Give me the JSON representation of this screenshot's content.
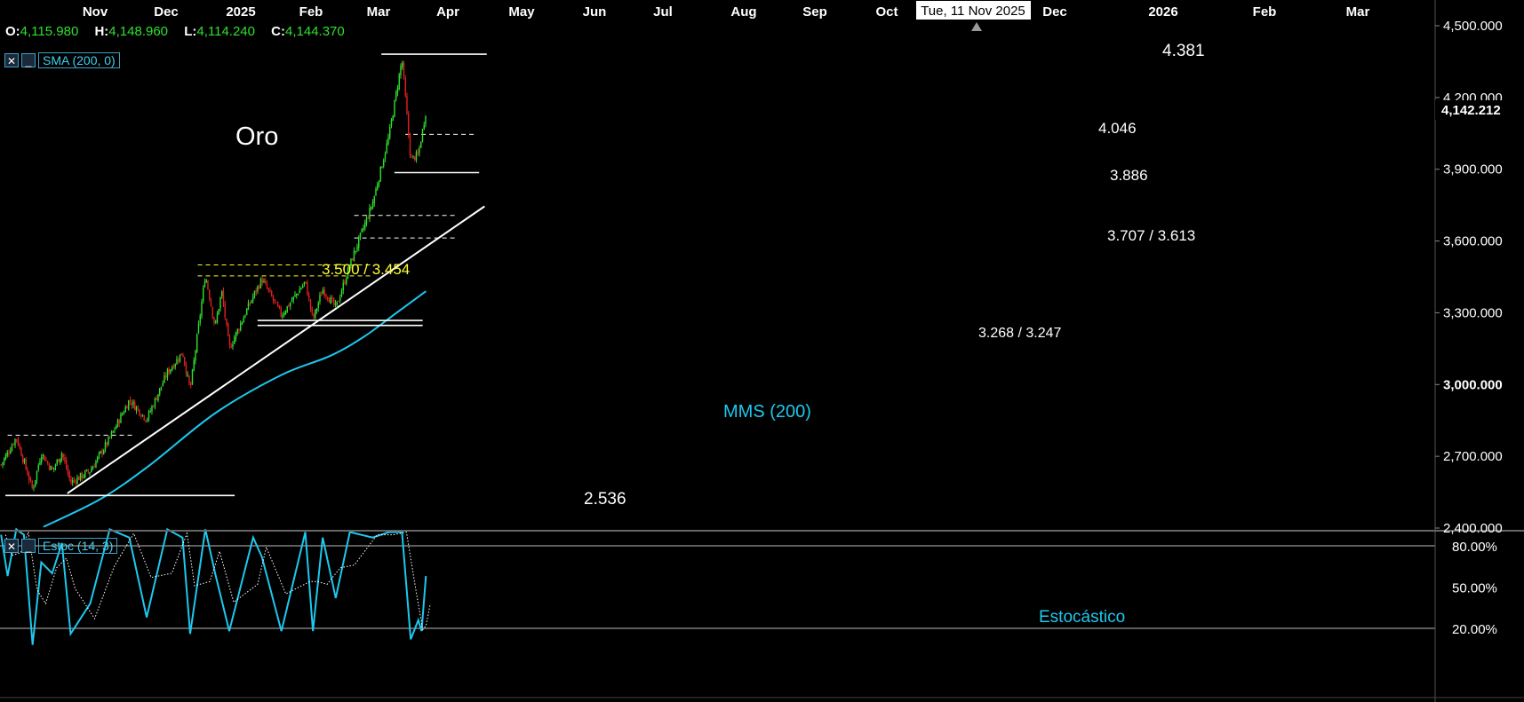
{
  "ohlc": {
    "o_label": "O:",
    "o": "4,115.980",
    "h_label": "H:",
    "h": "4,148.960",
    "l_label": "L:",
    "l": "4,114.240",
    "c_label": "C:",
    "c": "4,144.370"
  },
  "indicators": {
    "sma_label": "SMA (200, 0)",
    "stoch_label": "Estoc (14, 3)",
    "close_symbol": "✕",
    "minimize_symbol": "_"
  },
  "asset_title": "Oro",
  "crosshair_date": "Tue, 11 Nov 2025",
  "last_price": "4,142.212",
  "colors": {
    "up": "#2ee12e",
    "down": "#e02020",
    "sma": "#1ec8ee",
    "text": "#ffffff",
    "level_yellow": "#ffff33",
    "stoch_label": "#1ec8ee"
  },
  "chart_data": [
    {
      "type": "candlestick",
      "x_axis": {
        "tick_labels": [
          "Nov",
          "Dec",
          "2025",
          "Feb",
          "Mar",
          "Apr",
          "May",
          "Jun",
          "Jul",
          "Aug",
          "Sep",
          "Oct",
          "Dec",
          "2026",
          "Feb",
          "Mar"
        ]
      },
      "y_axis": {
        "tick_labels": [
          "4,500.000",
          "4,200.000",
          "3,900.000",
          "3,600.000",
          "3,300.000",
          "3,000.000",
          "2,700.000",
          "2,400.000"
        ],
        "ticks": [
          4500,
          4200,
          3900,
          3600,
          3300,
          3000,
          2700,
          2400
        ],
        "range": [
          2400,
          4500
        ]
      },
      "price_path": [
        {
          "date": "2024-10-16",
          "close": 2665
        },
        {
          "date": "2024-10-30",
          "close": 2780
        },
        {
          "date": "2024-11-14",
          "close": 2560
        },
        {
          "date": "2024-11-22",
          "close": 2715
        },
        {
          "date": "2024-12-02",
          "close": 2640
        },
        {
          "date": "2024-12-11",
          "close": 2715
        },
        {
          "date": "2024-12-19",
          "close": 2590
        },
        {
          "date": "2025-01-06",
          "close": 2640
        },
        {
          "date": "2025-01-24",
          "close": 2775
        },
        {
          "date": "2025-02-11",
          "close": 2935
        },
        {
          "date": "2025-02-27",
          "close": 2855
        },
        {
          "date": "2025-03-18",
          "close": 3050
        },
        {
          "date": "2025-04-01",
          "close": 3135
        },
        {
          "date": "2025-04-08",
          "close": 2975
        },
        {
          "date": "2025-04-22",
          "close": 3460
        },
        {
          "date": "2025-05-01",
          "close": 3240
        },
        {
          "date": "2025-05-07",
          "close": 3390
        },
        {
          "date": "2025-05-14",
          "close": 3150
        },
        {
          "date": "2025-06-05",
          "close": 3370
        },
        {
          "date": "2025-06-13",
          "close": 3440
        },
        {
          "date": "2025-07-01",
          "close": 3290
        },
        {
          "date": "2025-07-23",
          "close": 3430
        },
        {
          "date": "2025-07-30",
          "close": 3270
        },
        {
          "date": "2025-08-08",
          "close": 3400
        },
        {
          "date": "2025-08-20",
          "close": 3320
        },
        {
          "date": "2025-09-02",
          "close": 3500
        },
        {
          "date": "2025-09-23",
          "close": 3760
        },
        {
          "date": "2025-10-08",
          "close": 4040
        },
        {
          "date": "2025-10-20",
          "close": 4360
        },
        {
          "date": "2025-10-28",
          "close": 3940
        },
        {
          "date": "2025-11-04",
          "close": 3960
        },
        {
          "date": "2025-11-11",
          "close": 4144
        }
      ],
      "sma200": [
        {
          "date": "2024-11-24",
          "value": 2405
        },
        {
          "date": "2025-01-15",
          "value": 2520
        },
        {
          "date": "2025-03-01",
          "value": 2660
        },
        {
          "date": "2025-05-01",
          "value": 2880
        },
        {
          "date": "2025-07-01",
          "value": 3040
        },
        {
          "date": "2025-08-15",
          "value": 3120
        },
        {
          "date": "2025-09-15",
          "value": 3200
        },
        {
          "date": "2025-10-15",
          "value": 3300
        },
        {
          "date": "2025-11-11",
          "value": 3390
        }
      ],
      "levels": [
        {
          "label": "4.381",
          "value": 4381,
          "style": "solid",
          "color": "#ffffff",
          "from": "2025-10-01",
          "to": "2026-01-06"
        },
        {
          "label": "4.046",
          "value": 4046,
          "style": "dashed",
          "color": "#ffffff",
          "from": "2025-10-23",
          "to": "2025-12-27"
        },
        {
          "label": "3.886",
          "value": 3886,
          "style": "solid",
          "color": "#ffffff",
          "from": "2025-10-13",
          "to": "2025-12-30"
        },
        {
          "label": "3.707 / 3.613",
          "value": 3707,
          "value2": 3613,
          "style": "dashed",
          "color": "#ffffff",
          "from": "2025-09-06",
          "to": "2025-12-10"
        },
        {
          "label": "3.500 / 3.454",
          "value": 3500,
          "value2": 3454,
          "style": "dashed",
          "color": "#ffff33",
          "from": "2025-04-15",
          "to": "2025-09-24"
        },
        {
          "label": "3.268 / 3.247",
          "value": 3268,
          "value2": 3247,
          "style": "solid",
          "color": "#ffffff",
          "from": "2025-06-09",
          "to": "2025-11-08"
        },
        {
          "label": "2.536",
          "value": 2536,
          "style": "solid",
          "color": "#ffffff",
          "from": "2024-10-20",
          "to": "2025-05-19"
        },
        {
          "label": "",
          "value": 2788,
          "style": "dashed",
          "color": "#ffffff",
          "from": "2024-10-22",
          "to": "2025-02-16"
        }
      ],
      "trendline": {
        "from": {
          "date": "2024-12-16",
          "value": 2545
        },
        "to": {
          "date": "2026-01-04",
          "value": 3745
        }
      },
      "annotations": [
        "Oro",
        "MMS (200)"
      ]
    },
    {
      "type": "line",
      "name": "Estoc (14, 3)",
      "y_axis": {
        "tick_labels": [
          "80.00%",
          "50.00%",
          "20.00%"
        ],
        "ticks": [
          80,
          50,
          20
        ],
        "range": [
          0,
          100
        ]
      },
      "k_path": [
        {
          "date": "2024-10-16",
          "value": 88
        },
        {
          "date": "2024-10-22",
          "value": 58
        },
        {
          "date": "2024-10-30",
          "value": 92
        },
        {
          "date": "2024-11-06",
          "value": 88
        },
        {
          "date": "2024-11-14",
          "value": 8
        },
        {
          "date": "2024-11-22",
          "value": 68
        },
        {
          "date": "2024-12-02",
          "value": 60
        },
        {
          "date": "2024-12-11",
          "value": 82
        },
        {
          "date": "2024-12-19",
          "value": 16
        },
        {
          "date": "2025-01-06",
          "value": 38
        },
        {
          "date": "2025-01-24",
          "value": 92
        },
        {
          "date": "2025-02-11",
          "value": 86
        },
        {
          "date": "2025-02-27",
          "value": 28
        },
        {
          "date": "2025-03-18",
          "value": 92
        },
        {
          "date": "2025-04-01",
          "value": 86
        },
        {
          "date": "2025-04-08",
          "value": 16
        },
        {
          "date": "2025-04-22",
          "value": 92
        },
        {
          "date": "2025-05-01",
          "value": 60
        },
        {
          "date": "2025-05-14",
          "value": 18
        },
        {
          "date": "2025-06-05",
          "value": 86
        },
        {
          "date": "2025-06-13",
          "value": 72
        },
        {
          "date": "2025-07-01",
          "value": 18
        },
        {
          "date": "2025-07-23",
          "value": 90
        },
        {
          "date": "2025-07-30",
          "value": 18
        },
        {
          "date": "2025-08-08",
          "value": 86
        },
        {
          "date": "2025-08-20",
          "value": 42
        },
        {
          "date": "2025-09-02",
          "value": 90
        },
        {
          "date": "2025-09-23",
          "value": 86
        },
        {
          "date": "2025-10-08",
          "value": 90
        },
        {
          "date": "2025-10-20",
          "value": 90
        },
        {
          "date": "2025-10-28",
          "value": 12
        },
        {
          "date": "2025-11-04",
          "value": 26
        },
        {
          "date": "2025-11-07",
          "value": 18
        },
        {
          "date": "2025-11-11",
          "value": 58
        }
      ],
      "annotations": [
        "Estocástico"
      ]
    }
  ],
  "labels": {
    "lvl_4381": "4.381",
    "lvl_4046": "4.046",
    "lvl_3886": "3.886",
    "lvl_3707": "3.707 / 3.613",
    "lvl_3500": "3.500 / 3.454",
    "lvl_3268": "3.268 / 3.247",
    "lvl_2536": "2.536",
    "mms": "MMS (200)",
    "estoc": "Estocástico"
  }
}
